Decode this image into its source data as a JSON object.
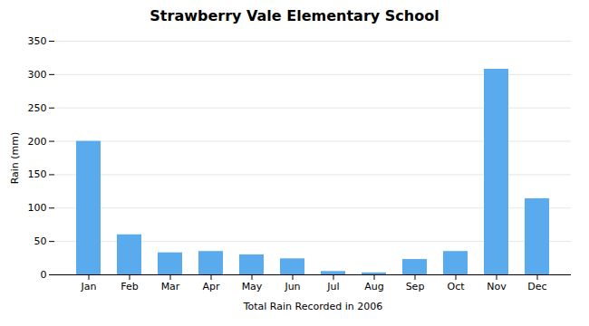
{
  "chart_data": {
    "type": "bar",
    "title": "Strawberry Vale Elementary School",
    "xlabel": "Total Rain Recorded in 2006",
    "ylabel": "Rain (mm)",
    "categories": [
      "Jan",
      "Feb",
      "Mar",
      "Apr",
      "May",
      "Jun",
      "Jul",
      "Aug",
      "Sep",
      "Oct",
      "Nov",
      "Dec"
    ],
    "values": [
      200,
      60,
      33,
      35,
      30,
      24,
      5,
      3,
      23,
      35,
      308,
      114
    ],
    "color": "#5aabee",
    "ylim": [
      0,
      350
    ],
    "yticks": [
      0,
      50,
      100,
      150,
      200,
      250,
      300,
      350
    ],
    "grid": true
  }
}
